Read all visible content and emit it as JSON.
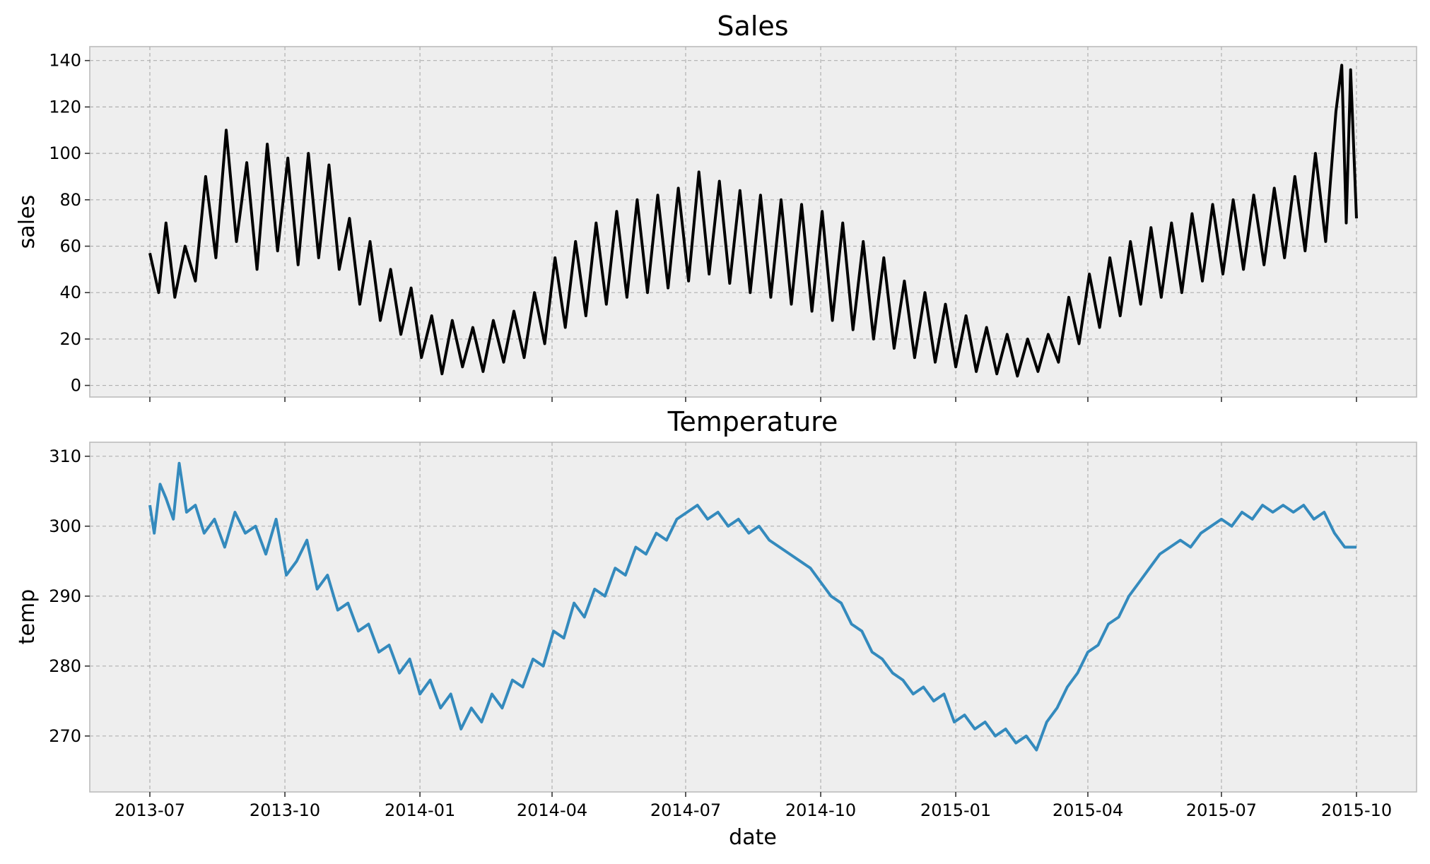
{
  "chart_data": [
    {
      "type": "line",
      "title": "Sales",
      "xlabel": "",
      "ylabel": "sales",
      "x_range": [
        "2013-07-01",
        "2015-10-01"
      ],
      "xticks": [
        "2013-07",
        "2013-10",
        "2014-01",
        "2014-04",
        "2014-07",
        "2014-10",
        "2015-01",
        "2015-04",
        "2015-07",
        "2015-10"
      ],
      "show_xtick_labels": false,
      "ylim": [
        -5,
        146
      ],
      "yticks": [
        0,
        20,
        40,
        60,
        80,
        100,
        120,
        140
      ],
      "grid": true,
      "color": "#000000",
      "series": [
        {
          "values": [
            [
              "2013-07-01",
              57
            ],
            [
              "2013-07-07",
              40
            ],
            [
              "2013-07-12",
              70
            ],
            [
              "2013-07-18",
              38
            ],
            [
              "2013-07-25",
              60
            ],
            [
              "2013-08-01",
              45
            ],
            [
              "2013-08-08",
              90
            ],
            [
              "2013-08-15",
              55
            ],
            [
              "2013-08-22",
              110
            ],
            [
              "2013-08-29",
              62
            ],
            [
              "2013-09-05",
              96
            ],
            [
              "2013-09-12",
              50
            ],
            [
              "2013-09-19",
              104
            ],
            [
              "2013-09-26",
              58
            ],
            [
              "2013-10-03",
              98
            ],
            [
              "2013-10-10",
              52
            ],
            [
              "2013-10-17",
              100
            ],
            [
              "2013-10-24",
              55
            ],
            [
              "2013-10-31",
              95
            ],
            [
              "2013-11-07",
              50
            ],
            [
              "2013-11-14",
              72
            ],
            [
              "2013-11-21",
              35
            ],
            [
              "2013-11-28",
              62
            ],
            [
              "2013-12-05",
              28
            ],
            [
              "2013-12-12",
              50
            ],
            [
              "2013-12-19",
              22
            ],
            [
              "2013-12-26",
              42
            ],
            [
              "2014-01-02",
              12
            ],
            [
              "2014-01-09",
              30
            ],
            [
              "2014-01-16",
              5
            ],
            [
              "2014-01-23",
              28
            ],
            [
              "2014-01-30",
              8
            ],
            [
              "2014-02-06",
              25
            ],
            [
              "2014-02-13",
              6
            ],
            [
              "2014-02-20",
              28
            ],
            [
              "2014-02-27",
              10
            ],
            [
              "2014-03-06",
              32
            ],
            [
              "2014-03-13",
              12
            ],
            [
              "2014-03-20",
              40
            ],
            [
              "2014-03-27",
              18
            ],
            [
              "2014-04-03",
              55
            ],
            [
              "2014-04-10",
              25
            ],
            [
              "2014-04-17",
              62
            ],
            [
              "2014-04-24",
              30
            ],
            [
              "2014-05-01",
              70
            ],
            [
              "2014-05-08",
              35
            ],
            [
              "2014-05-15",
              75
            ],
            [
              "2014-05-22",
              38
            ],
            [
              "2014-05-29",
              80
            ],
            [
              "2014-06-05",
              40
            ],
            [
              "2014-06-12",
              82
            ],
            [
              "2014-06-19",
              42
            ],
            [
              "2014-06-26",
              85
            ],
            [
              "2014-07-03",
              45
            ],
            [
              "2014-07-10",
              92
            ],
            [
              "2014-07-17",
              48
            ],
            [
              "2014-07-24",
              88
            ],
            [
              "2014-07-31",
              44
            ],
            [
              "2014-08-07",
              84
            ],
            [
              "2014-08-14",
              40
            ],
            [
              "2014-08-21",
              82
            ],
            [
              "2014-08-28",
              38
            ],
            [
              "2014-09-04",
              80
            ],
            [
              "2014-09-11",
              35
            ],
            [
              "2014-09-18",
              78
            ],
            [
              "2014-09-25",
              32
            ],
            [
              "2014-10-02",
              75
            ],
            [
              "2014-10-09",
              28
            ],
            [
              "2014-10-16",
              70
            ],
            [
              "2014-10-23",
              24
            ],
            [
              "2014-10-30",
              62
            ],
            [
              "2014-11-06",
              20
            ],
            [
              "2014-11-13",
              55
            ],
            [
              "2014-11-20",
              16
            ],
            [
              "2014-11-27",
              45
            ],
            [
              "2014-12-04",
              12
            ],
            [
              "2014-12-11",
              40
            ],
            [
              "2014-12-18",
              10
            ],
            [
              "2014-12-25",
              35
            ],
            [
              "2015-01-01",
              8
            ],
            [
              "2015-01-08",
              30
            ],
            [
              "2015-01-15",
              6
            ],
            [
              "2015-01-22",
              25
            ],
            [
              "2015-01-29",
              5
            ],
            [
              "2015-02-05",
              22
            ],
            [
              "2015-02-12",
              4
            ],
            [
              "2015-02-19",
              20
            ],
            [
              "2015-02-26",
              6
            ],
            [
              "2015-03-05",
              22
            ],
            [
              "2015-03-12",
              10
            ],
            [
              "2015-03-19",
              38
            ],
            [
              "2015-03-26",
              18
            ],
            [
              "2015-04-02",
              48
            ],
            [
              "2015-04-09",
              25
            ],
            [
              "2015-04-16",
              55
            ],
            [
              "2015-04-23",
              30
            ],
            [
              "2015-04-30",
              62
            ],
            [
              "2015-05-07",
              35
            ],
            [
              "2015-05-14",
              68
            ],
            [
              "2015-05-21",
              38
            ],
            [
              "2015-05-28",
              70
            ],
            [
              "2015-06-04",
              40
            ],
            [
              "2015-06-11",
              74
            ],
            [
              "2015-06-18",
              45
            ],
            [
              "2015-06-25",
              78
            ],
            [
              "2015-07-02",
              48
            ],
            [
              "2015-07-09",
              80
            ],
            [
              "2015-07-16",
              50
            ],
            [
              "2015-07-23",
              82
            ],
            [
              "2015-07-30",
              52
            ],
            [
              "2015-08-06",
              85
            ],
            [
              "2015-08-13",
              55
            ],
            [
              "2015-08-20",
              90
            ],
            [
              "2015-08-27",
              58
            ],
            [
              "2015-09-03",
              100
            ],
            [
              "2015-09-10",
              62
            ],
            [
              "2015-09-17",
              118
            ],
            [
              "2015-09-21",
              138
            ],
            [
              "2015-09-24",
              70
            ],
            [
              "2015-09-27",
              136
            ],
            [
              "2015-10-01",
              72
            ]
          ]
        }
      ]
    },
    {
      "type": "line",
      "title": "Temperature",
      "xlabel": "date",
      "ylabel": "temp",
      "x_range": [
        "2013-07-01",
        "2015-10-01"
      ],
      "xticks": [
        "2013-07",
        "2013-10",
        "2014-01",
        "2014-04",
        "2014-07",
        "2014-10",
        "2015-01",
        "2015-04",
        "2015-07",
        "2015-10"
      ],
      "show_xtick_labels": true,
      "ylim": [
        262,
        312
      ],
      "yticks": [
        270,
        280,
        290,
        300,
        310
      ],
      "grid": true,
      "color": "#348abd",
      "series": [
        {
          "values": [
            [
              "2013-07-01",
              303
            ],
            [
              "2013-07-04",
              299
            ],
            [
              "2013-07-08",
              306
            ],
            [
              "2013-07-12",
              304
            ],
            [
              "2013-07-17",
              301
            ],
            [
              "2013-07-21",
              309
            ],
            [
              "2013-07-26",
              302
            ],
            [
              "2013-08-01",
              303
            ],
            [
              "2013-08-07",
              299
            ],
            [
              "2013-08-14",
              301
            ],
            [
              "2013-08-21",
              297
            ],
            [
              "2013-08-28",
              302
            ],
            [
              "2013-09-04",
              299
            ],
            [
              "2013-09-11",
              300
            ],
            [
              "2013-09-18",
              296
            ],
            [
              "2013-09-25",
              301
            ],
            [
              "2013-10-02",
              293
            ],
            [
              "2013-10-09",
              295
            ],
            [
              "2013-10-16",
              298
            ],
            [
              "2013-10-23",
              291
            ],
            [
              "2013-10-30",
              293
            ],
            [
              "2013-11-06",
              288
            ],
            [
              "2013-11-13",
              289
            ],
            [
              "2013-11-20",
              285
            ],
            [
              "2013-11-27",
              286
            ],
            [
              "2013-12-04",
              282
            ],
            [
              "2013-12-11",
              283
            ],
            [
              "2013-12-18",
              279
            ],
            [
              "2013-12-25",
              281
            ],
            [
              "2014-01-01",
              276
            ],
            [
              "2014-01-08",
              278
            ],
            [
              "2014-01-15",
              274
            ],
            [
              "2014-01-22",
              276
            ],
            [
              "2014-01-29",
              271
            ],
            [
              "2014-02-05",
              274
            ],
            [
              "2014-02-12",
              272
            ],
            [
              "2014-02-19",
              276
            ],
            [
              "2014-02-26",
              274
            ],
            [
              "2014-03-05",
              278
            ],
            [
              "2014-03-12",
              277
            ],
            [
              "2014-03-19",
              281
            ],
            [
              "2014-03-26",
              280
            ],
            [
              "2014-04-02",
              285
            ],
            [
              "2014-04-09",
              284
            ],
            [
              "2014-04-16",
              289
            ],
            [
              "2014-04-23",
              287
            ],
            [
              "2014-04-30",
              291
            ],
            [
              "2014-05-07",
              290
            ],
            [
              "2014-05-14",
              294
            ],
            [
              "2014-05-21",
              293
            ],
            [
              "2014-05-28",
              297
            ],
            [
              "2014-06-04",
              296
            ],
            [
              "2014-06-11",
              299
            ],
            [
              "2014-06-18",
              298
            ],
            [
              "2014-06-25",
              301
            ],
            [
              "2014-07-02",
              302
            ],
            [
              "2014-07-09",
              303
            ],
            [
              "2014-07-16",
              301
            ],
            [
              "2014-07-23",
              302
            ],
            [
              "2014-07-30",
              300
            ],
            [
              "2014-08-06",
              301
            ],
            [
              "2014-08-13",
              299
            ],
            [
              "2014-08-20",
              300
            ],
            [
              "2014-08-27",
              298
            ],
            [
              "2014-09-03",
              297
            ],
            [
              "2014-09-10",
              296
            ],
            [
              "2014-09-17",
              295
            ],
            [
              "2014-09-24",
              294
            ],
            [
              "2014-10-01",
              292
            ],
            [
              "2014-10-08",
              290
            ],
            [
              "2014-10-15",
              289
            ],
            [
              "2014-10-22",
              286
            ],
            [
              "2014-10-29",
              285
            ],
            [
              "2014-11-05",
              282
            ],
            [
              "2014-11-12",
              281
            ],
            [
              "2014-11-19",
              279
            ],
            [
              "2014-11-26",
              278
            ],
            [
              "2014-12-03",
              276
            ],
            [
              "2014-12-10",
              277
            ],
            [
              "2014-12-17",
              275
            ],
            [
              "2014-12-24",
              276
            ],
            [
              "2014-12-31",
              272
            ],
            [
              "2015-01-07",
              273
            ],
            [
              "2015-01-14",
              271
            ],
            [
              "2015-01-21",
              272
            ],
            [
              "2015-01-28",
              270
            ],
            [
              "2015-02-04",
              271
            ],
            [
              "2015-02-11",
              269
            ],
            [
              "2015-02-18",
              270
            ],
            [
              "2015-02-25",
              268
            ],
            [
              "2015-03-04",
              272
            ],
            [
              "2015-03-11",
              274
            ],
            [
              "2015-03-18",
              277
            ],
            [
              "2015-03-25",
              279
            ],
            [
              "2015-04-01",
              282
            ],
            [
              "2015-04-08",
              283
            ],
            [
              "2015-04-15",
              286
            ],
            [
              "2015-04-22",
              287
            ],
            [
              "2015-04-29",
              290
            ],
            [
              "2015-05-06",
              292
            ],
            [
              "2015-05-13",
              294
            ],
            [
              "2015-05-20",
              296
            ],
            [
              "2015-05-27",
              297
            ],
            [
              "2015-06-03",
              298
            ],
            [
              "2015-06-10",
              297
            ],
            [
              "2015-06-17",
              299
            ],
            [
              "2015-06-24",
              300
            ],
            [
              "2015-07-01",
              301
            ],
            [
              "2015-07-08",
              300
            ],
            [
              "2015-07-15",
              302
            ],
            [
              "2015-07-22",
              301
            ],
            [
              "2015-07-29",
              303
            ],
            [
              "2015-08-05",
              302
            ],
            [
              "2015-08-12",
              303
            ],
            [
              "2015-08-19",
              302
            ],
            [
              "2015-08-26",
              303
            ],
            [
              "2015-09-02",
              301
            ],
            [
              "2015-09-09",
              302
            ],
            [
              "2015-09-16",
              299
            ],
            [
              "2015-09-23",
              297
            ],
            [
              "2015-10-01",
              297
            ]
          ]
        }
      ]
    }
  ]
}
